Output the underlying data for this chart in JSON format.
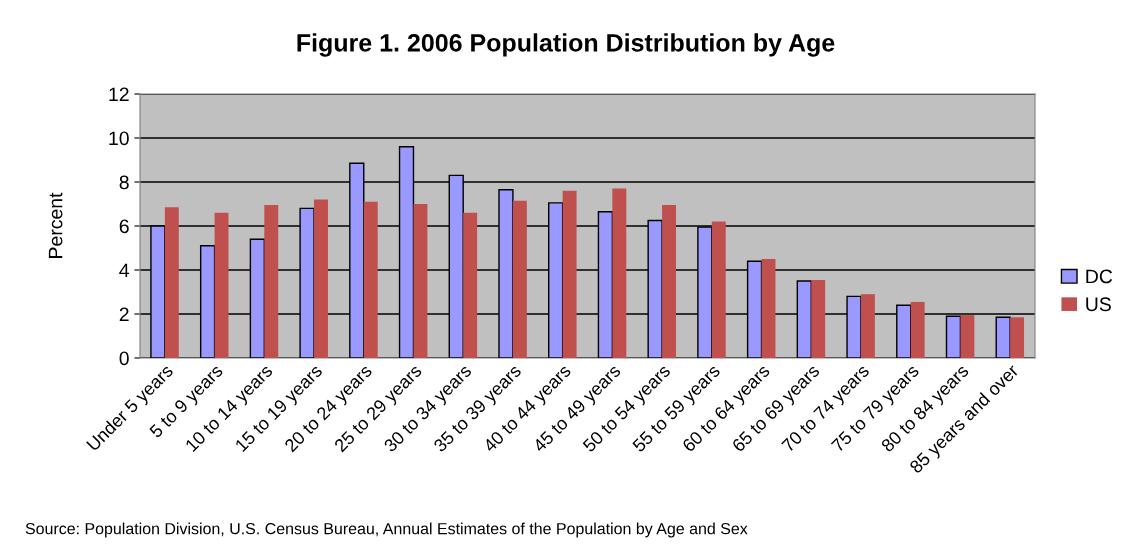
{
  "chart_data": {
    "type": "bar",
    "title": "Figure 1. 2006 Population Distribution by Age",
    "ylabel": "Percent",
    "categories": [
      "Under 5 years",
      "5 to 9 years",
      "10 to 14 years",
      "15 to 19 years",
      "20 to 24 years",
      "25 to 29 years",
      "30 to 34 years",
      "35 to 39 years",
      "40 to 44 years",
      "45 to 49 years",
      "50 to 54 years",
      "55 to 59 years",
      "60 to 64 years",
      "65 to 69 years",
      "70 to 74 years",
      "75 to 79 years",
      "80 to 84 years",
      "85 years and over"
    ],
    "series": [
      {
        "name": "DC",
        "color": "#9999ff",
        "values": [
          6.0,
          5.1,
          5.4,
          6.8,
          8.85,
          9.6,
          8.3,
          7.65,
          7.05,
          6.65,
          6.25,
          5.95,
          4.4,
          3.5,
          2.8,
          2.4,
          1.9,
          1.85
        ]
      },
      {
        "name": "US",
        "color": "#c0504d",
        "values": [
          6.85,
          6.6,
          6.95,
          7.2,
          7.1,
          7.0,
          6.6,
          7.15,
          7.6,
          7.7,
          6.95,
          6.2,
          4.5,
          3.55,
          2.9,
          2.55,
          1.95,
          1.85
        ]
      }
    ],
    "ylim": [
      0,
      12
    ],
    "yticks": [
      0,
      2,
      4,
      6,
      8,
      10,
      12
    ],
    "grid": "y",
    "legend": "right",
    "annotations": [
      "Source: Population Division, U.S. Census Bureau, Annual Estimates of the Population by Age and Sex"
    ]
  }
}
